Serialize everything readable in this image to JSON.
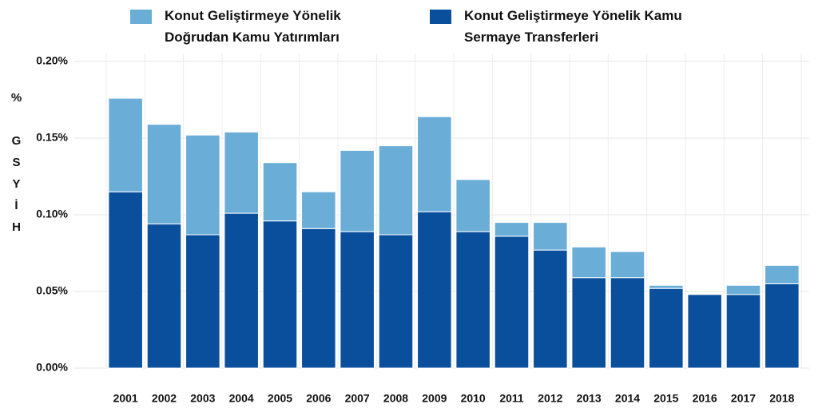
{
  "chart_data": {
    "type": "stacked_bar",
    "y_label": "% GSYİH",
    "categories": [
      "2001",
      "2002",
      "2003",
      "2004",
      "2005",
      "2006",
      "2007",
      "2008",
      "2009",
      "2010",
      "2011",
      "2012",
      "2013",
      "2014",
      "2015",
      "2016",
      "2017",
      "2018"
    ],
    "series": [
      {
        "name": "Konut Geliştirmeye Yönelik Kamu Sermaye Transferleri",
        "color": "#0a4f9b",
        "values": [
          0.115,
          0.094,
          0.087,
          0.101,
          0.096,
          0.091,
          0.089,
          0.087,
          0.102,
          0.089,
          0.086,
          0.077,
          0.059,
          0.059,
          0.052,
          0.048,
          0.048,
          0.055
        ]
      },
      {
        "name": "Konut Geliştirmeye Yönelik Doğrudan Kamu Yatırımları",
        "color": "#6aaed8",
        "values": [
          0.061,
          0.065,
          0.065,
          0.053,
          0.038,
          0.024,
          0.053,
          0.058,
          0.062,
          0.034,
          0.009,
          0.018,
          0.02,
          0.017,
          0.002,
          0,
          0.006,
          0.012
        ]
      }
    ],
    "ylim": [
      0,
      0.2
    ],
    "yticks": [
      {
        "value": 0,
        "label": "0.00%"
      },
      {
        "value": 0.05,
        "label": "0.05%"
      },
      {
        "value": 0.1,
        "label": "0.10%"
      },
      {
        "value": 0.15,
        "label": "0.15%"
      },
      {
        "value": 0.2,
        "label": "0.20%"
      }
    ],
    "grid": true
  }
}
